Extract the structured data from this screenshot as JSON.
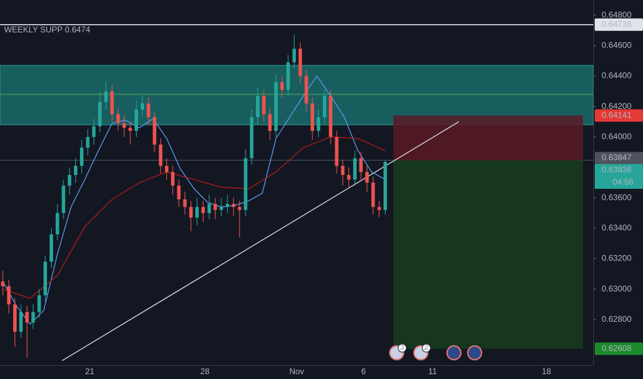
{
  "chart_data": {
    "type": "candlestick",
    "annotation": "WEEKLY SUPP 0.6474",
    "ylim": [
      0.625,
      0.649
    ],
    "yticks": [
      {
        "value": 0.648,
        "label": "0.64800"
      },
      {
        "value": 0.646,
        "label": "0.64600"
      },
      {
        "value": 0.644,
        "label": "0.64400"
      },
      {
        "value": 0.642,
        "label": "0.64200"
      },
      {
        "value": 0.64,
        "label": "0.64000"
      },
      {
        "value": 0.636,
        "label": "0.63600"
      },
      {
        "value": 0.634,
        "label": "0.63400"
      },
      {
        "value": 0.632,
        "label": "0.63200"
      },
      {
        "value": 0.63,
        "label": "0.63000"
      },
      {
        "value": 0.628,
        "label": "0.62800"
      }
    ],
    "up_color": "#26a69a",
    "down_color": "#ef5350",
    "candles": [
      [
        0.6305,
        0.6312,
        0.6296,
        0.6302
      ],
      [
        0.6302,
        0.6306,
        0.6284,
        0.629
      ],
      [
        0.629,
        0.6294,
        0.6262,
        0.6272
      ],
      [
        0.6272,
        0.629,
        0.6268,
        0.6285
      ],
      [
        0.6285,
        0.6289,
        0.6255,
        0.6278
      ],
      [
        0.6278,
        0.629,
        0.6274,
        0.6285
      ],
      [
        0.6285,
        0.63,
        0.6281,
        0.6296
      ],
      [
        0.6296,
        0.6322,
        0.6292,
        0.6318
      ],
      [
        0.6318,
        0.634,
        0.6314,
        0.6336
      ],
      [
        0.6336,
        0.6356,
        0.6332,
        0.635
      ],
      [
        0.635,
        0.6372,
        0.6346,
        0.6368
      ],
      [
        0.6368,
        0.638,
        0.6362,
        0.6375
      ],
      [
        0.6375,
        0.6386,
        0.637,
        0.6381
      ],
      [
        0.6381,
        0.6398,
        0.6376,
        0.6393
      ],
      [
        0.6393,
        0.6405,
        0.6388,
        0.64
      ],
      [
        0.64,
        0.6412,
        0.6395,
        0.6407
      ],
      [
        0.6407,
        0.643,
        0.6403,
        0.6423
      ],
      [
        0.6423,
        0.6436,
        0.6418,
        0.643
      ],
      [
        0.643,
        0.6434,
        0.641,
        0.6415
      ],
      [
        0.6415,
        0.6419,
        0.6404,
        0.6409
      ],
      [
        0.6409,
        0.6414,
        0.64,
        0.6406
      ],
      [
        0.6406,
        0.641,
        0.6395,
        0.6404
      ],
      [
        0.6404,
        0.6424,
        0.64,
        0.6418
      ],
      [
        0.6418,
        0.6427,
        0.6414,
        0.6422
      ],
      [
        0.6422,
        0.6426,
        0.6408,
        0.6413
      ],
      [
        0.6413,
        0.6417,
        0.639,
        0.6395
      ],
      [
        0.6395,
        0.6399,
        0.6376,
        0.6381
      ],
      [
        0.6381,
        0.6386,
        0.6372,
        0.6377
      ],
      [
        0.6377,
        0.6381,
        0.6362,
        0.6368
      ],
      [
        0.6368,
        0.6372,
        0.6354,
        0.6359
      ],
      [
        0.6359,
        0.6364,
        0.6349,
        0.6354
      ],
      [
        0.6354,
        0.6358,
        0.6338,
        0.6347
      ],
      [
        0.6347,
        0.636,
        0.6342,
        0.6354
      ],
      [
        0.6354,
        0.6358,
        0.6344,
        0.635
      ],
      [
        0.635,
        0.6362,
        0.6346,
        0.6356
      ],
      [
        0.6356,
        0.636,
        0.6346,
        0.6352
      ],
      [
        0.6352,
        0.636,
        0.6348,
        0.6354
      ],
      [
        0.6354,
        0.6362,
        0.635,
        0.6356
      ],
      [
        0.6356,
        0.636,
        0.6348,
        0.6354
      ],
      [
        0.6354,
        0.6358,
        0.6334,
        0.6352
      ],
      [
        0.6352,
        0.6392,
        0.6348,
        0.6386
      ],
      [
        0.6386,
        0.6418,
        0.6382,
        0.6413
      ],
      [
        0.6413,
        0.6432,
        0.6408,
        0.6427
      ],
      [
        0.6427,
        0.6431,
        0.641,
        0.6415
      ],
      [
        0.6415,
        0.6419,
        0.6398,
        0.6404
      ],
      [
        0.6404,
        0.6441,
        0.64,
        0.6436
      ],
      [
        0.6436,
        0.644,
        0.6426,
        0.6431
      ],
      [
        0.6431,
        0.6454,
        0.6427,
        0.6449
      ],
      [
        0.6449,
        0.6467,
        0.6445,
        0.6458
      ],
      [
        0.6458,
        0.6462,
        0.6435,
        0.644
      ],
      [
        0.644,
        0.6444,
        0.6417,
        0.6422
      ],
      [
        0.6422,
        0.6426,
        0.6398,
        0.6404
      ],
      [
        0.6404,
        0.6418,
        0.64,
        0.6413
      ],
      [
        0.6413,
        0.6431,
        0.6409,
        0.6427
      ],
      [
        0.6427,
        0.6431,
        0.6395,
        0.64
      ],
      [
        0.64,
        0.6404,
        0.6376,
        0.6381
      ],
      [
        0.6381,
        0.6385,
        0.6368,
        0.6375
      ],
      [
        0.6375,
        0.638,
        0.6366,
        0.6372
      ],
      [
        0.6372,
        0.6391,
        0.6368,
        0.6386
      ],
      [
        0.6386,
        0.639,
        0.6372,
        0.6377
      ],
      [
        0.6377,
        0.6381,
        0.6364,
        0.637
      ],
      [
        0.637,
        0.6374,
        0.6349,
        0.6354
      ],
      [
        0.6354,
        0.6358,
        0.6347,
        0.6352
      ],
      [
        0.6352,
        0.63847,
        0.6349,
        0.63836
      ]
    ],
    "moving_averages": [
      {
        "color": "#5b9cf6",
        "values": [
          0.6305,
          0.6289,
          0.6277,
          0.6286,
          0.6323,
          0.6354,
          0.6372,
          0.6391,
          0.6409,
          0.6411,
          0.6406,
          0.6412,
          0.6399,
          0.6379,
          0.6366,
          0.6357,
          0.6354,
          0.6355,
          0.6358,
          0.6363,
          0.6399,
          0.6413,
          0.6427,
          0.644,
          0.6427,
          0.6413,
          0.6391,
          0.6377,
          0.6372
        ]
      },
      {
        "color": "#b71c1c",
        "values": [
          0.63,
          0.6294,
          0.6309,
          0.6341,
          0.6359,
          0.637,
          0.6377,
          0.6372,
          0.6367,
          0.6366,
          0.6377,
          0.6393,
          0.64,
          0.6399,
          0.6391
        ]
      }
    ],
    "levels": {
      "weekly_supp": 0.64738,
      "stop": 0.64141,
      "entry": 0.63847,
      "last": 0.63836,
      "target": 0.62608
    },
    "countdown": "04:58",
    "zone": [
      0.6408,
      0.6447
    ],
    "zone_line": 0.6428,
    "trendline": [
      0.6253,
      0.641
    ],
    "x_labels": [
      "21",
      "28",
      "Nov",
      "6",
      "11",
      "18"
    ],
    "event_counts": [
      "3",
      "2"
    ]
  }
}
